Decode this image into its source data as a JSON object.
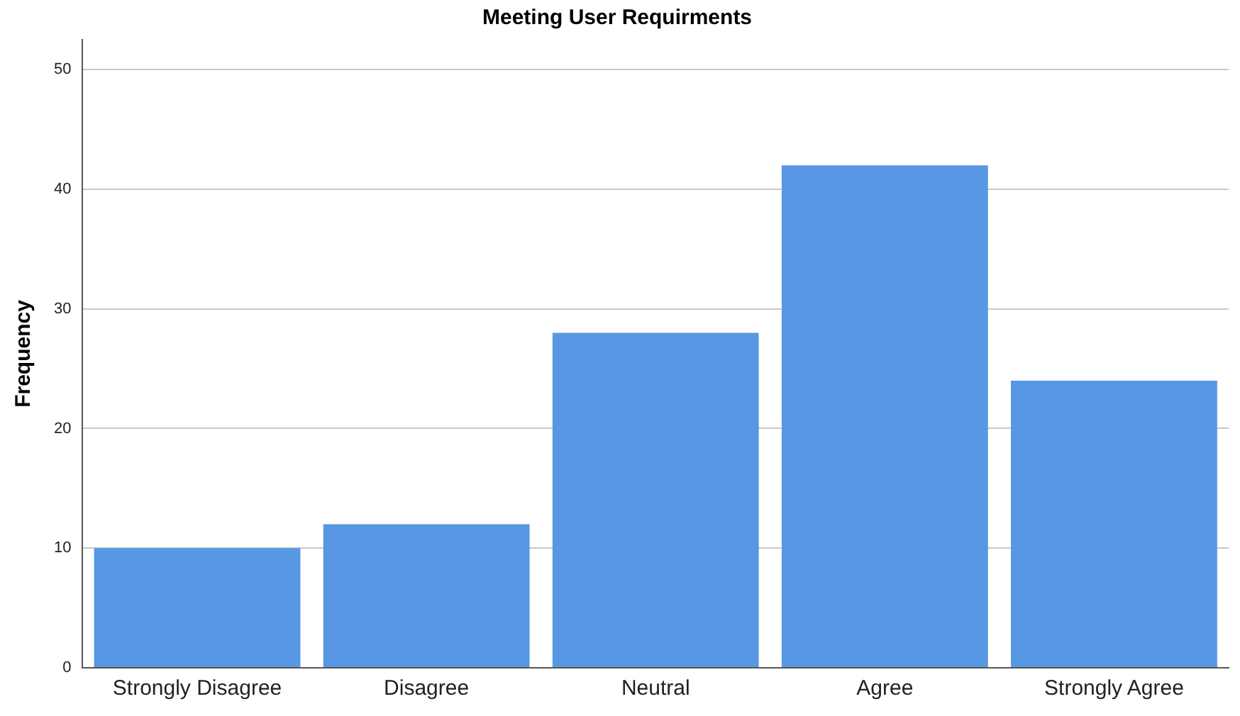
{
  "chart_data": {
    "type": "bar",
    "title": "Meeting User Requirments",
    "ylabel": "Frequency",
    "categories": [
      "Strongly Disagree",
      "Disagree",
      "Neutral",
      "Agree",
      "Strongly Agree"
    ],
    "values": [
      10,
      12,
      28,
      42,
      24
    ],
    "color": "#5797e3",
    "ylim": [
      0,
      52.5
    ],
    "yticks": [
      0,
      10,
      20,
      30,
      40,
      50
    ],
    "grid": "y",
    "legend": false
  }
}
